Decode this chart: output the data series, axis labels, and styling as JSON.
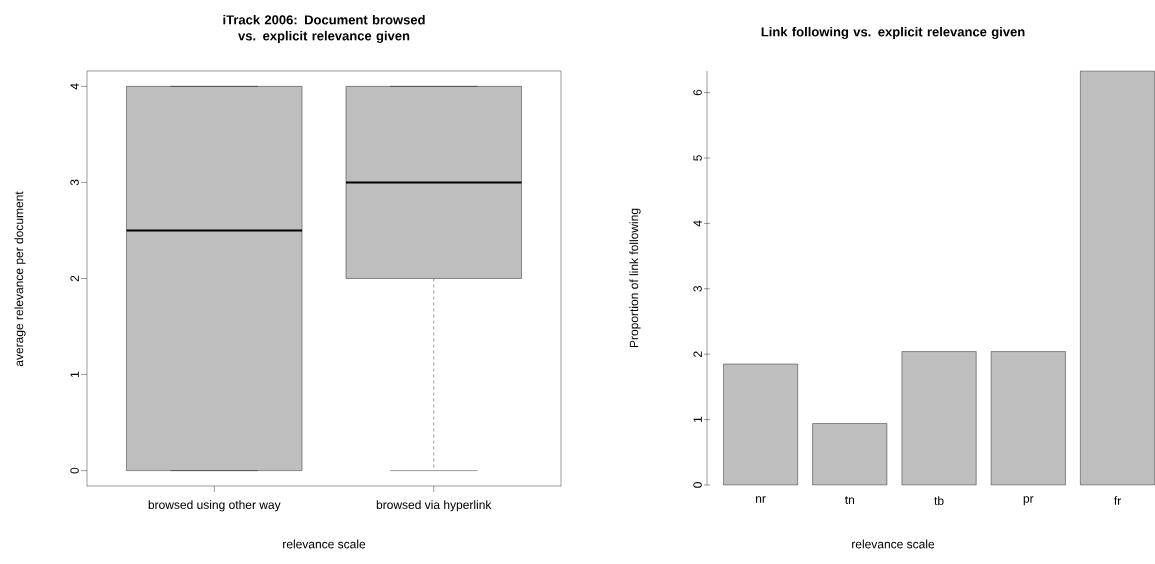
{
  "chart_data": [
    {
      "type": "box",
      "title": "iTrack 2006: Document browsed vs. explicit relevance given",
      "xlabel": "relevance scale",
      "ylabel": "average relevance per document",
      "categories": [
        "browsed using other way",
        "browsed via hyperlink"
      ],
      "color": "#bebebe",
      "ylim": [
        -0.16,
        4.16
      ],
      "yticks": [
        0,
        1,
        2,
        3,
        4
      ],
      "boxes": [
        {
          "low": 0,
          "q1": 0,
          "median": 2.5,
          "q3": 4,
          "high": 4
        },
        {
          "low": 0,
          "q1": 2,
          "median": 3,
          "q3": 4,
          "high": 4
        }
      ]
    },
    {
      "type": "bar",
      "title": "Link following vs. explicit relevance given",
      "xlabel": "relevance scale",
      "ylabel": "Proportion of link following",
      "categories": [
        "nr",
        "tn",
        "tb",
        "pr",
        "fr"
      ],
      "values": [
        1.85,
        0.94,
        2.04,
        2.04,
        6.33
      ],
      "color": "#bebebe",
      "ylim": [
        0,
        6.33
      ],
      "yticks": [
        0,
        1,
        2,
        3,
        4,
        5,
        6
      ]
    }
  ]
}
